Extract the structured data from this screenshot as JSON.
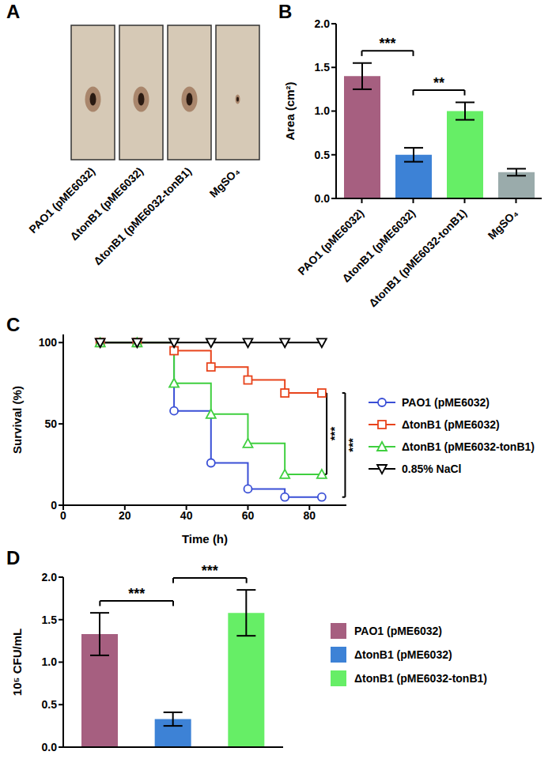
{
  "chart_data": [
    {
      "panel": "A",
      "type": "image",
      "categories": [
        "PAO1 (pME6032)",
        "ΔtonB1 (pME6032)",
        "ΔtonB1 (pME6032-tonB1)",
        "MgSO₄"
      ]
    },
    {
      "panel": "B",
      "type": "bar",
      "categories": [
        "PAO1 (pME6032)",
        "ΔtonB1 (pME6032)",
        "ΔtonB1 (pME6032-tonB1)",
        "MgSO₄"
      ],
      "values": [
        1.4,
        0.5,
        1.0,
        0.3
      ],
      "errors": [
        0.15,
        0.08,
        0.1,
        0.04
      ],
      "colors": [
        "#a65f80",
        "#3d82d6",
        "#66ee66",
        "#9aabab"
      ],
      "y_label": "Area (cm²)",
      "ylim": [
        0,
        2
      ],
      "yticks": [
        {
          "value": 0,
          "label": "0.0"
        },
        {
          "value": 0.5,
          "label": "0.5"
        },
        {
          "value": 1,
          "label": "1.0"
        },
        {
          "value": 1.5,
          "label": "1.5"
        },
        {
          "value": 2,
          "label": "2.0"
        }
      ],
      "annotations": [
        {
          "text": "***",
          "from": "PAO1 (pME6032)",
          "to": "ΔtonB1 (pME6032)"
        },
        {
          "text": "**",
          "from": "ΔtonB1 (pME6032)",
          "to": "ΔtonB1 (pME6032-tonB1)"
        }
      ]
    },
    {
      "panel": "C",
      "type": "line",
      "line_style": "step",
      "x_label": "Time (h)",
      "y_label": "Survival (%)",
      "x": [
        12,
        24,
        36,
        48,
        60,
        72,
        84
      ],
      "xlim": [
        0,
        92
      ],
      "xticks": [
        0,
        20,
        40,
        60,
        80
      ],
      "ylim": [
        0,
        105
      ],
      "yticks": [
        0,
        50,
        100
      ],
      "legend": "right",
      "series": [
        {
          "name": "PAO1 (pME6032)",
          "color": "#3a4fd6",
          "marker": "circle",
          "values": [
            100,
            100,
            58,
            26,
            10,
            5,
            5
          ]
        },
        {
          "name": "ΔtonB1 (pME6032)",
          "color": "#e8441c",
          "marker": "square",
          "values": [
            100,
            100,
            95,
            85,
            77,
            69,
            69
          ]
        },
        {
          "name": "ΔtonB1 (pME6032-tonB1)",
          "color": "#3fcf3f",
          "marker": "triangle",
          "values": [
            100,
            100,
            75,
            56,
            38,
            19,
            19
          ]
        },
        {
          "name": "0.85% NaCl",
          "color": "#000000",
          "marker": "triangle-down",
          "values": [
            100,
            100,
            100,
            100,
            100,
            100,
            100
          ]
        }
      ],
      "annotations": [
        {
          "text": "***",
          "from": "ΔtonB1 (pME6032)",
          "to": "ΔtonB1 (pME6032-tonB1)"
        },
        {
          "text": "***",
          "from": "ΔtonB1 (pME6032)",
          "to": "PAO1 (pME6032)"
        }
      ]
    },
    {
      "panel": "D",
      "type": "bar",
      "categories": [
        "PAO1 (pME6032)",
        "ΔtonB1 (pME6032)",
        "ΔtonB1 (pME6032-tonB1)"
      ],
      "values": [
        1.33,
        0.33,
        1.58
      ],
      "errors": [
        0.25,
        0.08,
        0.27
      ],
      "colors": [
        "#a65f80",
        "#3d82d6",
        "#66ee66"
      ],
      "y_label": "10⁵ CFU/mL",
      "ylim": [
        0,
        2
      ],
      "yticks": [
        {
          "value": 0,
          "label": "0.0"
        },
        {
          "value": 0.5,
          "label": "0.5"
        },
        {
          "value": 1,
          "label": "1.0"
        },
        {
          "value": 1.5,
          "label": "1.5"
        },
        {
          "value": 2,
          "label": "2.0"
        }
      ],
      "legend": "right",
      "tick_labels": "y",
      "annotations": [
        {
          "text": "***",
          "from": "PAO1 (pME6032)",
          "to": "ΔtonB1 (pME6032)"
        },
        {
          "text": "***",
          "from": "ΔtonB1 (pME6032)",
          "to": "ΔtonB1 (pME6032-tonB1)"
        }
      ]
    }
  ]
}
